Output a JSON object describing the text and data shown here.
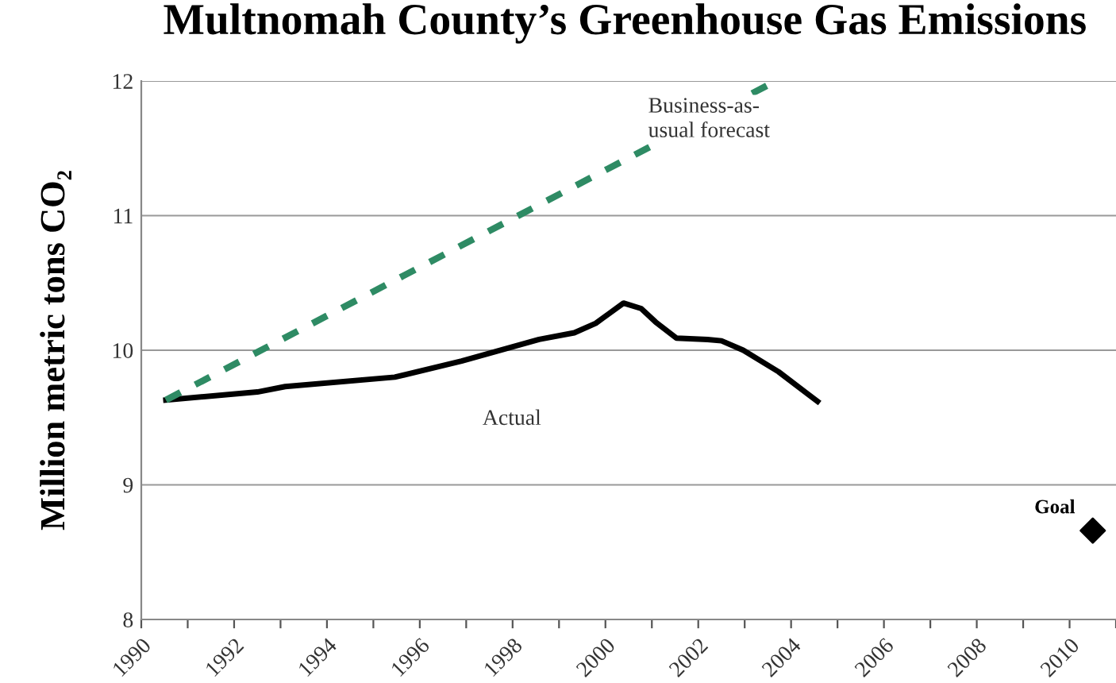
{
  "chart_data": {
    "type": "line",
    "title": "Multnomah County’s Greenhouse Gas Emissions",
    "ylabel": "Million metric tons CO₂",
    "series": [
      {
        "name": "Actual",
        "color": "#000000",
        "line_style": "solid",
        "marker": "none",
        "x": [
          1990.53,
          1992.5,
          1993.1,
          1995.46,
          1996.9,
          1998.57,
          1999.33,
          1999.79,
          2000.39,
          2000.77,
          2001.08,
          2001.53,
          2002.2,
          2002.5,
          2002.97,
          2003.73,
          2004.57
        ],
        "values": [
          9.63,
          9.69,
          9.73,
          9.8,
          9.92,
          10.08,
          10.13,
          10.2,
          10.35,
          10.31,
          10.21,
          10.09,
          10.08,
          10.07,
          10.0,
          9.84,
          9.62
        ]
      },
      {
        "name": "Business-as-\nusual forecast",
        "color": "#2e8b64",
        "line_style": "dashed",
        "marker": "none",
        "x": [
          1990.53,
          2003.67
        ],
        "values": [
          9.63,
          12.0
        ]
      },
      {
        "name": "Goal",
        "type": "scatter",
        "color": "#000000",
        "marker": "diamond",
        "x": [
          2010.5
        ],
        "values": [
          8.66
        ]
      }
    ],
    "xlim": [
      1990,
      2011
    ],
    "ylim": [
      8,
      12
    ],
    "yticks": [
      8,
      9,
      10,
      11,
      12
    ],
    "xticks": [
      1990,
      {
        "value": 1991,
        "label": null
      },
      1992,
      {
        "value": 1993,
        "label": null
      },
      1994,
      {
        "value": 1995,
        "label": null
      },
      1996,
      {
        "value": 1997,
        "label": null
      },
      1998,
      {
        "value": 1999,
        "label": null
      },
      2000,
      {
        "value": 2001,
        "label": null
      },
      2002,
      {
        "value": 2003,
        "label": null
      },
      2004,
      {
        "value": 2005,
        "label": null
      },
      2006,
      {
        "value": 2007,
        "label": null
      },
      2008,
      {
        "value": 2009,
        "label": null
      },
      2010,
      {
        "value": 2011,
        "label": null
      }
    ],
    "grid": "y",
    "legend": false
  }
}
